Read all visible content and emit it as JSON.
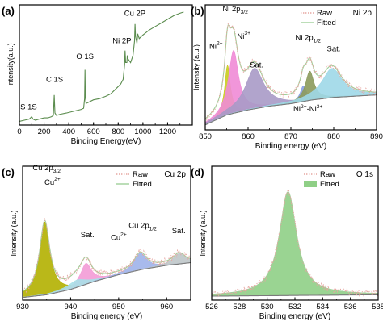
{
  "panels": [
    {
      "id": "a",
      "letter": "(a)",
      "chart_data": {
        "type": "line",
        "title": "",
        "xlabel": "Binding Energy(eV)",
        "ylabel": "Intensity(a.u.)",
        "xlim": [
          0,
          1400
        ],
        "ylim": [
          0,
          100
        ],
        "xticks": [
          0,
          200,
          400,
          600,
          800,
          1000,
          1200
        ],
        "yticks": [],
        "grid": false,
        "legend": null,
        "series": [
          {
            "color": "#5b8c4e",
            "x": [
              0,
              40,
              80,
              100,
              110,
              130,
              160,
              200,
              230,
              260,
              275,
              282,
              288,
              300,
              330,
              380,
              420,
              460,
              500,
              520,
              528,
              531,
              534,
              540,
              560,
              600,
              650,
              700,
              740,
              780,
              820,
              840,
              852,
              856,
              860,
              870,
              874,
              880,
              900,
              920,
              932,
              936,
              940,
              952,
              958,
              970,
              1000,
              1050,
              1100,
              1150,
              1200,
              1250,
              1300,
              1330
            ],
            "y": [
              3,
              4,
              5,
              7,
              5,
              4,
              5,
              6,
              6,
              7,
              8,
              25,
              10,
              8,
              9,
              10,
              11,
              12,
              13,
              14,
              22,
              46,
              24,
              18,
              19,
              21,
              22,
              24,
              26,
              30,
              34,
              38,
              50,
              62,
              52,
              52,
              58,
              55,
              52,
              58,
              70,
              84,
              74,
              68,
              76,
              72,
              75,
              79,
              82,
              85,
              88,
              91,
              93,
              94
            ]
          }
        ],
        "annotations": [
          {
            "text": "S 1S",
            "x": 75,
            "y": 13
          },
          {
            "text": "C 1S",
            "x": 285,
            "y": 36
          },
          {
            "text": "O 1S",
            "x": 531,
            "y": 55
          },
          {
            "text": "Ni 2P",
            "x": 830,
            "y": 68
          },
          {
            "text": "Cu 2P",
            "x": 935,
            "y": 91
          }
        ]
      }
    },
    {
      "id": "b",
      "letter": "(b)",
      "corner_label": "Ni 2p",
      "chart_data": {
        "type": "line",
        "title": "",
        "xlabel": "Binding energy (eV)",
        "ylabel": "Intensity (a.u.)",
        "xlim": [
          850,
          890
        ],
        "ylim": [
          0,
          100
        ],
        "xticks": [
          850,
          860,
          870,
          880,
          890
        ],
        "grid": false,
        "legend": {
          "placement": "top-center",
          "entries": [
            {
              "label": "Raw",
              "style": "dotted",
              "color": "#e6a5a0"
            },
            {
              "label": "Fitted",
              "style": "solid",
              "color": "#9fd09a"
            }
          ]
        },
        "background": {
          "color": "#7a7a7a",
          "points": [
            [
              850,
              4
            ],
            [
              855,
              12
            ],
            [
              860,
              16
            ],
            [
              865,
              19
            ],
            [
              870,
              21
            ],
            [
              875,
              24
            ],
            [
              880,
              26
            ],
            [
              885,
              27
            ],
            [
              890,
              28
            ]
          ]
        },
        "peaks": [
          {
            "label": "Ni2+",
            "center": 855.2,
            "height": 44,
            "width": 0.8,
            "color": "#c9cc1e"
          },
          {
            "label": "Ni3+",
            "center": 856.6,
            "height": 56,
            "width": 1.4,
            "color": "#f08bd6"
          },
          {
            "label": "Sat.",
            "center": 861.5,
            "height": 36,
            "width": 2.6,
            "color": "#a89ac6"
          },
          {
            "label": "Ni2+",
            "center": 872.9,
            "height": 14,
            "width": 0.9,
            "color": "#8aa0e6"
          },
          {
            "label": "Ni3+",
            "center": 874.4,
            "height": 26,
            "width": 1.2,
            "color": "#8c9a5c"
          },
          {
            "label": "Sat.",
            "center": 879.6,
            "height": 26,
            "width": 2.9,
            "color": "#9fd8e8"
          }
        ],
        "annotations": [
          {
            "text": "Ni 2p3/2",
            "x": 857,
            "y": 95
          },
          {
            "text": "Ni3+",
            "x": 859,
            "y": 73
          },
          {
            "text": "Ni2+",
            "x": 852.5,
            "y": 65
          },
          {
            "text": "Sat.",
            "x": 862,
            "y": 50
          },
          {
            "text": "Ni 2p1/2",
            "x": 874,
            "y": 72
          },
          {
            "text": "Sat.",
            "x": 880,
            "y": 63
          },
          {
            "text": "Ni2+-Ni3+",
            "x": 874,
            "y": 15
          }
        ]
      }
    },
    {
      "id": "c",
      "letter": "(c)",
      "corner_label": "Cu 2p",
      "chart_data": {
        "type": "line",
        "title": "",
        "xlabel": "Binding energy (eV)",
        "ylabel": "Intensity (a.u.)",
        "xlim": [
          930,
          965
        ],
        "ylim": [
          0,
          100
        ],
        "xticks": [
          930,
          940,
          950,
          960
        ],
        "grid": false,
        "legend": {
          "placement": "top-right",
          "entries": [
            {
              "label": "Raw",
              "style": "dotted",
              "color": "#e6a5a0"
            },
            {
              "label": "Fitted",
              "style": "solid",
              "color": "#9fd09a"
            }
          ]
        },
        "background": {
          "color": "#7a7a7a",
          "points": [
            [
              930,
              2
            ],
            [
              935,
              4
            ],
            [
              940,
              8
            ],
            [
              945,
              14
            ],
            [
              950,
              19
            ],
            [
              955,
              23
            ],
            [
              960,
              26
            ],
            [
              965,
              28
            ]
          ]
        },
        "peaks": [
          {
            "label": "Cu2+",
            "center": 934.6,
            "height": 70,
            "width": 1.3,
            "color": "#b3b000"
          },
          {
            "label": "Sat.",
            "center": 943.2,
            "height": 20,
            "width": 1.4,
            "color": "#f39bd6"
          },
          {
            "label": "Sat.",
            "center": 941.3,
            "height": 7,
            "width": 2.4,
            "color": "#a8e0e8"
          },
          {
            "label": "Cu2+",
            "center": 954.5,
            "height": 16,
            "width": 1.6,
            "color": "#9fb3ea"
          },
          {
            "label": "Sat.",
            "center": 962.6,
            "height": 10,
            "width": 1.6,
            "color": "#bfc7c9"
          }
        ],
        "annotations": [
          {
            "text": "Cu 2p3/2",
            "x": 935,
            "y": 97
          },
          {
            "text": "Cu2+",
            "x": 936.2,
            "y": 86
          },
          {
            "text": "Sat.",
            "x": 943.5,
            "y": 47
          },
          {
            "text": "Cu 2p1/2",
            "x": 955,
            "y": 54
          },
          {
            "text": "Cu2+",
            "x": 950,
            "y": 45
          },
          {
            "text": "Sat.",
            "x": 962.5,
            "y": 50
          }
        ]
      }
    },
    {
      "id": "d",
      "letter": "(d)",
      "corner_label": "O 1s",
      "chart_data": {
        "type": "area",
        "title": "",
        "xlabel": "Binding energy (eV)",
        "ylabel": "Intensity (a.u.)",
        "xlim": [
          526,
          538
        ],
        "ylim": [
          0,
          100
        ],
        "xticks": [
          526,
          528,
          530,
          532,
          534,
          536,
          538
        ],
        "grid": false,
        "legend": {
          "placement": "top-right",
          "entries": [
            {
              "label": "Raw",
              "style": "dotted",
              "color": "#e6a5a0"
            },
            {
              "label": "Fitted",
              "style": "filled",
              "color": "#8fcf86"
            }
          ]
        },
        "background": {
          "color": "#7a7a7a",
          "points": [
            [
              526,
              3
            ],
            [
              532,
              3.5
            ],
            [
              538,
              4
            ]
          ]
        },
        "peaks": [
          {
            "label": "O 1s",
            "center": 531.5,
            "height": 86,
            "width": 0.75,
            "color": "#8fcf86"
          }
        ],
        "annotations": []
      }
    }
  ],
  "colors": {
    "axis": "#000000",
    "raw": "#e6a5a0",
    "background": "#7a7a7a",
    "fitted": "#9fd09a"
  }
}
